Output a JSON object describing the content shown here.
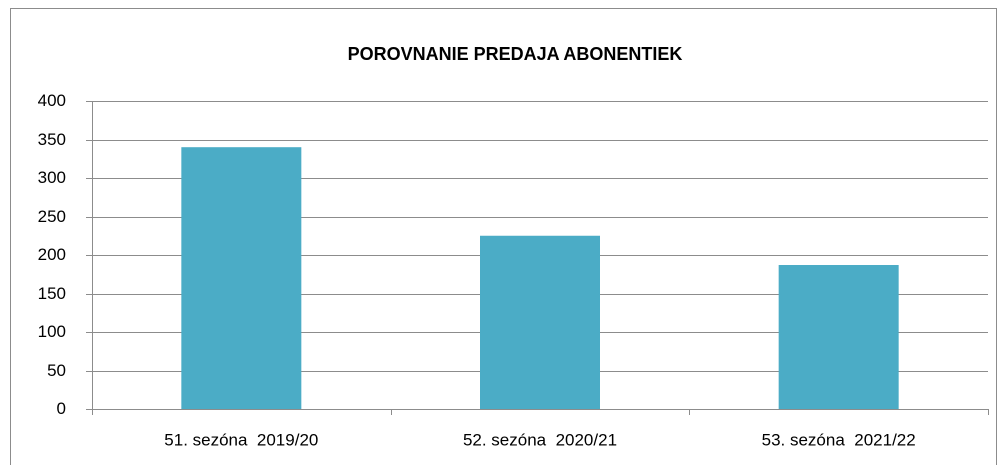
{
  "chart_data": {
    "type": "bar",
    "title": "POROVNANIE PREDAJA ABONENTIEK",
    "categories": [
      "51. sezóna  2019/20",
      "52. sezóna  2020/21",
      "53. sezóna  2021/22"
    ],
    "values": [
      340,
      225,
      187
    ],
    "color": "#4bacc6",
    "ylim": [
      0,
      400
    ],
    "yticks": [
      0,
      50,
      100,
      150,
      200,
      250,
      300,
      350,
      400
    ],
    "grid": true
  }
}
